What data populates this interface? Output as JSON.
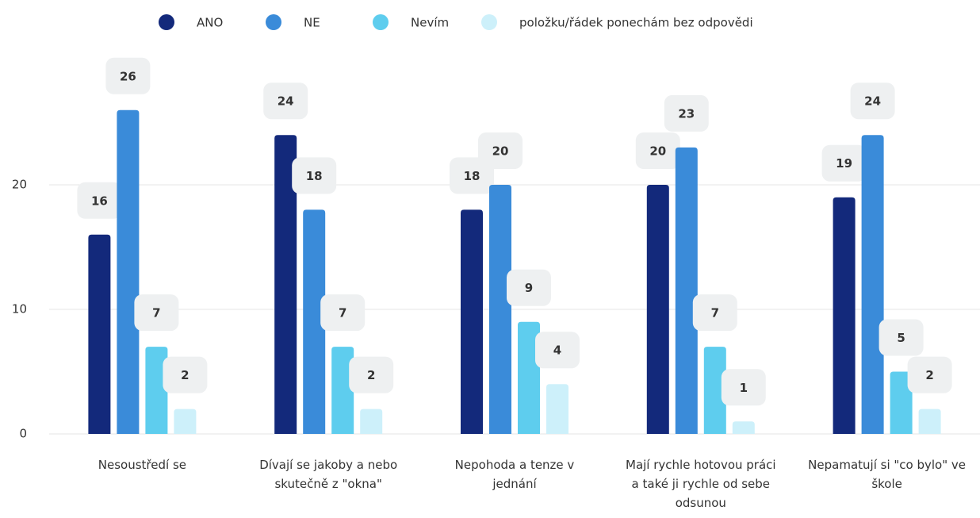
{
  "chart_data": {
    "type": "bar",
    "categories": [
      "Nesoustředí se",
      "Dívají se jakoby a nebo skutečně z \"okna\"",
      "Nepohoda a tenze v jednání",
      "Mají rychle hotovou práci a také ji rychle od sebe odsunou",
      "Nepamatují si \"co bylo\" ve škole"
    ],
    "series": [
      {
        "name": "ANO",
        "color": "#13297b",
        "values": [
          16,
          24,
          18,
          20,
          19
        ]
      },
      {
        "name": "NE",
        "color": "#3a8bd9",
        "values": [
          26,
          18,
          20,
          23,
          24
        ]
      },
      {
        "name": "Nevím",
        "color": "#5ecdee",
        "values": [
          7,
          7,
          9,
          7,
          5
        ]
      },
      {
        "name": "položku/řádek ponechám bez odpovědi",
        "color": "#cdf0fa",
        "values": [
          2,
          2,
          4,
          1,
          2
        ]
      }
    ],
    "ylim": [
      0,
      30
    ],
    "yticks": [
      0,
      10,
      20
    ],
    "grid": true,
    "legend": "top"
  }
}
